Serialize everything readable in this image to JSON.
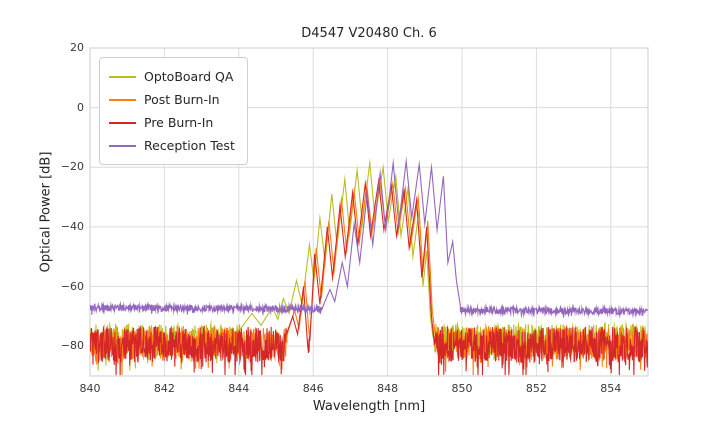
{
  "chart_data": {
    "type": "line",
    "title": "D4547 V20480 Ch. 6",
    "xlabel": "Wavelength [nm]",
    "ylabel": "Optical Power [dB]",
    "xlim": [
      840,
      855
    ],
    "ylim": [
      -90,
      20
    ],
    "xticks": [
      840,
      842,
      844,
      846,
      848,
      850,
      852,
      854
    ],
    "xtick_labels": [
      "840",
      "842",
      "844",
      "846",
      "848",
      "850",
      "852",
      "854"
    ],
    "yticks": [
      20,
      0,
      -20,
      -40,
      -60,
      -80
    ],
    "ytick_labels": [
      "20",
      "0",
      "−20",
      "−40",
      "−60",
      "−80"
    ],
    "grid": true,
    "legend_position": "upper left",
    "series": [
      {
        "name": "OptoBoard QA",
        "color": "#bcbd22",
        "noise": {
          "mean": -77.5,
          "amplitude": 5.0,
          "spike_prob": 0.1,
          "spike_extra": 7,
          "tilt": 0,
          "seed": 11
        },
        "signal": [
          [
            844.0,
            -75
          ],
          [
            844.35,
            -69
          ],
          [
            844.6,
            -73
          ],
          [
            844.9,
            -67
          ],
          [
            845.05,
            -71
          ],
          [
            845.2,
            -64
          ],
          [
            845.35,
            -69
          ],
          [
            845.55,
            -58
          ],
          [
            845.7,
            -66
          ],
          [
            845.9,
            -46
          ],
          [
            846.02,
            -58
          ],
          [
            846.18,
            -37
          ],
          [
            846.32,
            -52
          ],
          [
            846.5,
            -29
          ],
          [
            846.64,
            -46
          ],
          [
            846.85,
            -24
          ],
          [
            846.98,
            -42
          ],
          [
            847.18,
            -21
          ],
          [
            847.32,
            -39
          ],
          [
            847.52,
            -18.5
          ],
          [
            847.66,
            -37
          ],
          [
            847.88,
            -20
          ],
          [
            848.02,
            -38
          ],
          [
            848.22,
            -23
          ],
          [
            848.36,
            -43
          ],
          [
            848.55,
            -27
          ],
          [
            848.68,
            -50
          ],
          [
            848.85,
            -34
          ],
          [
            848.95,
            -60
          ],
          [
            849.05,
            -48
          ],
          [
            849.15,
            -70
          ],
          [
            849.25,
            -80
          ]
        ]
      },
      {
        "name": "Post Burn-In",
        "color": "#ff7f0e",
        "noise": {
          "mean": -79.0,
          "amplitude": 5.5,
          "spike_prob": 0.12,
          "spike_extra": 7,
          "tilt": 0,
          "seed": 22
        },
        "signal": [
          [
            845.3,
            -76
          ],
          [
            845.5,
            -68
          ],
          [
            845.62,
            -74
          ],
          [
            845.78,
            -58
          ],
          [
            845.9,
            -78
          ],
          [
            846.08,
            -47
          ],
          [
            846.22,
            -64
          ],
          [
            846.42,
            -38
          ],
          [
            846.56,
            -55
          ],
          [
            846.76,
            -31
          ],
          [
            846.9,
            -48
          ],
          [
            847.1,
            -28
          ],
          [
            847.24,
            -45
          ],
          [
            847.44,
            -26
          ],
          [
            847.58,
            -42
          ],
          [
            847.8,
            -25
          ],
          [
            847.94,
            -40
          ],
          [
            848.14,
            -25.5
          ],
          [
            848.28,
            -42
          ],
          [
            848.48,
            -27
          ],
          [
            848.62,
            -46
          ],
          [
            848.82,
            -30
          ],
          [
            848.95,
            -55
          ],
          [
            849.08,
            -38
          ],
          [
            849.2,
            -68
          ],
          [
            849.32,
            -80
          ]
        ]
      },
      {
        "name": "Pre Burn-In",
        "color": "#d62728",
        "noise": {
          "mean": -79.5,
          "amplitude": 6.0,
          "spike_prob": 0.14,
          "spike_extra": 8,
          "tilt": 0,
          "seed": 33
        },
        "signal": [
          [
            845.25,
            -77
          ],
          [
            845.45,
            -70
          ],
          [
            845.58,
            -76
          ],
          [
            845.74,
            -60
          ],
          [
            845.88,
            -85
          ],
          [
            846.04,
            -49
          ],
          [
            846.18,
            -66
          ],
          [
            846.38,
            -40
          ],
          [
            846.52,
            -57
          ],
          [
            846.72,
            -33
          ],
          [
            846.86,
            -50
          ],
          [
            847.06,
            -28.5
          ],
          [
            847.2,
            -46
          ],
          [
            847.4,
            -25.5
          ],
          [
            847.54,
            -43
          ],
          [
            847.76,
            -24.5
          ],
          [
            847.9,
            -41
          ],
          [
            848.1,
            -26
          ],
          [
            848.24,
            -43
          ],
          [
            848.44,
            -28
          ],
          [
            848.58,
            -47
          ],
          [
            848.78,
            -31
          ],
          [
            848.92,
            -57
          ],
          [
            849.05,
            -40
          ],
          [
            849.18,
            -70
          ],
          [
            849.28,
            -82
          ]
        ]
      },
      {
        "name": "Reception Test",
        "color": "#9467bd",
        "noise": {
          "mean": -67.0,
          "amplitude": 1.1,
          "spike_prob": 0.03,
          "spike_extra": 2,
          "tilt": -0.09,
          "seed": 44
        },
        "signal": [
          [
            846.25,
            -67
          ],
          [
            846.45,
            -61
          ],
          [
            846.58,
            -65
          ],
          [
            846.78,
            -52
          ],
          [
            846.92,
            -60
          ],
          [
            847.1,
            -39
          ],
          [
            847.25,
            -52
          ],
          [
            847.45,
            -29
          ],
          [
            847.6,
            -46
          ],
          [
            847.8,
            -22
          ],
          [
            847.95,
            -41
          ],
          [
            848.15,
            -18.5
          ],
          [
            848.3,
            -39
          ],
          [
            848.5,
            -18
          ],
          [
            848.65,
            -37
          ],
          [
            848.85,
            -19
          ],
          [
            849.0,
            -39
          ],
          [
            849.18,
            -20
          ],
          [
            849.33,
            -41
          ],
          [
            849.5,
            -23
          ],
          [
            849.62,
            -52
          ],
          [
            849.75,
            -45
          ],
          [
            849.85,
            -58
          ],
          [
            849.95,
            -66
          ]
        ]
      }
    ]
  }
}
